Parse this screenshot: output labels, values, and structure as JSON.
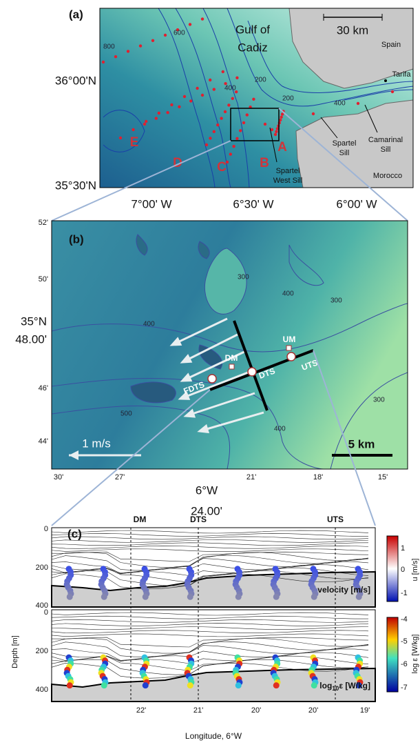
{
  "panel_a": {
    "label": "(a)",
    "title_lines": [
      "Gulf of",
      "Cadiz"
    ],
    "scale_bar": "30 km",
    "places": {
      "spain": "Spain",
      "tarifa": "Tarifa",
      "morocco": "Morocco"
    },
    "lat_labels": [
      "36°00'N",
      "35°30'N"
    ],
    "lon_labels": [
      "7°00' W",
      "6°30' W",
      "6°00' W"
    ],
    "section_labels": [
      "A",
      "B",
      "C",
      "D",
      "E"
    ],
    "sills": {
      "spartel_west": [
        "Spartel",
        "West Sill"
      ],
      "spartel": [
        "Spartel",
        "Sill"
      ],
      "camarinal": [
        "Camarinal",
        "Sill"
      ]
    },
    "contour_labels": [
      "600",
      "800",
      "200",
      "400",
      "200",
      "400"
    ]
  },
  "panel_b": {
    "label": "(b)",
    "lat_labels": [
      "52'",
      "50'",
      "35°N",
      "48.00'",
      "46'",
      "44'"
    ],
    "lon_labels": [
      "30'",
      "27'",
      "6°W",
      "24.00'",
      "21'",
      "18'",
      "15'"
    ],
    "stations": {
      "um": "UM",
      "dm": "DM",
      "fdts": "FDTS",
      "dts": "DTS",
      "uts": "UTS"
    },
    "velocity_scale": "1 m/s",
    "scale_bar": "5 km",
    "contour_labels": [
      "300",
      "300",
      "400",
      "400",
      "500",
      "400",
      "300"
    ]
  },
  "panel_c": {
    "label": "(c)",
    "station_labels": [
      "DM",
      "DTS",
      "UTS"
    ],
    "top_depth_ticks": [
      "0",
      "200",
      "400"
    ],
    "bottom_depth_ticks": [
      "0",
      "200",
      "400"
    ],
    "y_label": "Depth [m]",
    "x_ticks": [
      "22'",
      "21'",
      "20'",
      "20'",
      "19'"
    ],
    "x_label": "Longitude, 6°W",
    "velocity_label": "velocity [m/s]",
    "dissipation_label": {
      "base": "log",
      "sub": "10",
      "rest": "ε [W/kg]"
    },
    "velocity_colorbar": {
      "ticks": [
        "1",
        "0",
        "-1"
      ],
      "label": "u [m/s]"
    },
    "dissipation_colorbar": {
      "ticks": [
        "-4",
        "-5",
        "-6",
        "-7"
      ],
      "label": "log ε [W/kg]"
    }
  }
}
